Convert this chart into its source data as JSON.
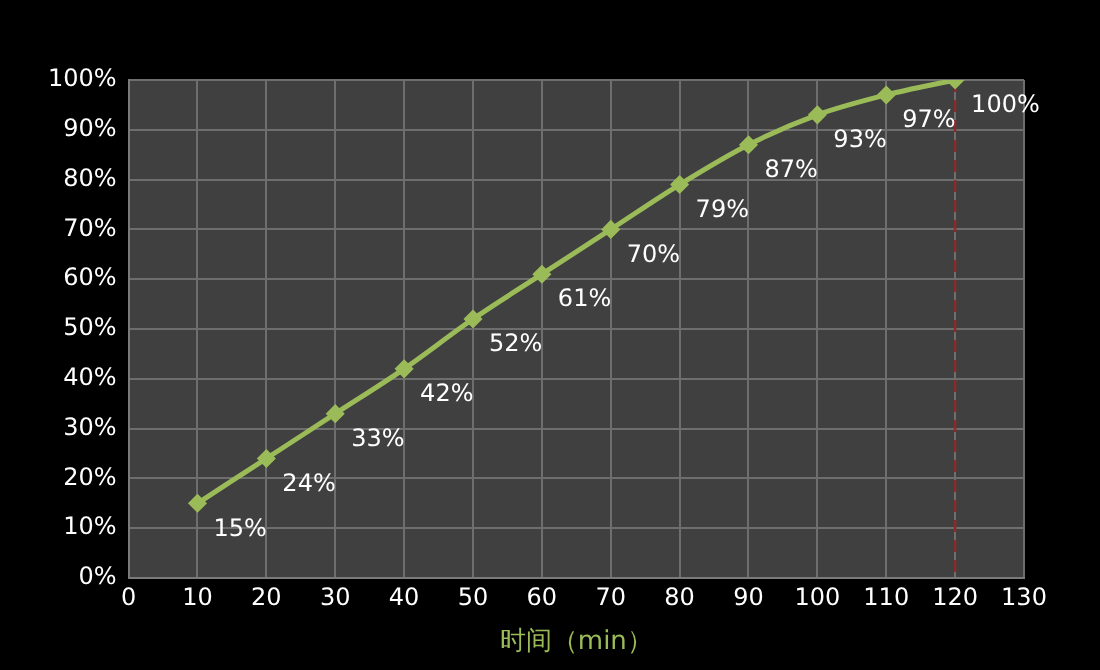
{
  "chart_data": {
    "type": "line",
    "xlabel": "时间（min）",
    "x": [
      10,
      20,
      30,
      40,
      50,
      60,
      70,
      80,
      90,
      100,
      110,
      120
    ],
    "series": [
      {
        "color": "#9bbb59",
        "values": [
          15,
          24,
          33,
          42,
          52,
          61,
          70,
          79,
          87,
          93,
          97,
          100
        ],
        "value_labels": [
          "15%",
          "24%",
          "33%",
          "42%",
          "52%",
          "61%",
          "70%",
          "79%",
          "87%",
          "93%",
          "97%",
          "100%"
        ]
      }
    ],
    "xlim": [
      0,
      130
    ],
    "xticks": [
      0,
      10,
      20,
      30,
      40,
      50,
      60,
      70,
      80,
      90,
      100,
      110,
      120,
      130
    ],
    "ylim": [
      0,
      100
    ],
    "yticks": [
      {
        "value": 0,
        "label": "0%"
      },
      {
        "value": 10,
        "label": "10%"
      },
      {
        "value": 20,
        "label": "20%"
      },
      {
        "value": 30,
        "label": "30%"
      },
      {
        "value": 40,
        "label": "40%"
      },
      {
        "value": 50,
        "label": "50%"
      },
      {
        "value": 60,
        "label": "60%"
      },
      {
        "value": 70,
        "label": "70%"
      },
      {
        "value": 80,
        "label": "80%"
      },
      {
        "value": 90,
        "label": "90%"
      },
      {
        "value": 100,
        "label": "100%"
      }
    ],
    "ref_lines": [
      {
        "axis": "x",
        "value": 120,
        "color": "#8b2a2a",
        "line_style": "dashed"
      }
    ],
    "grid": true,
    "legend": false,
    "marker": "diamond",
    "line_style": "solid"
  }
}
